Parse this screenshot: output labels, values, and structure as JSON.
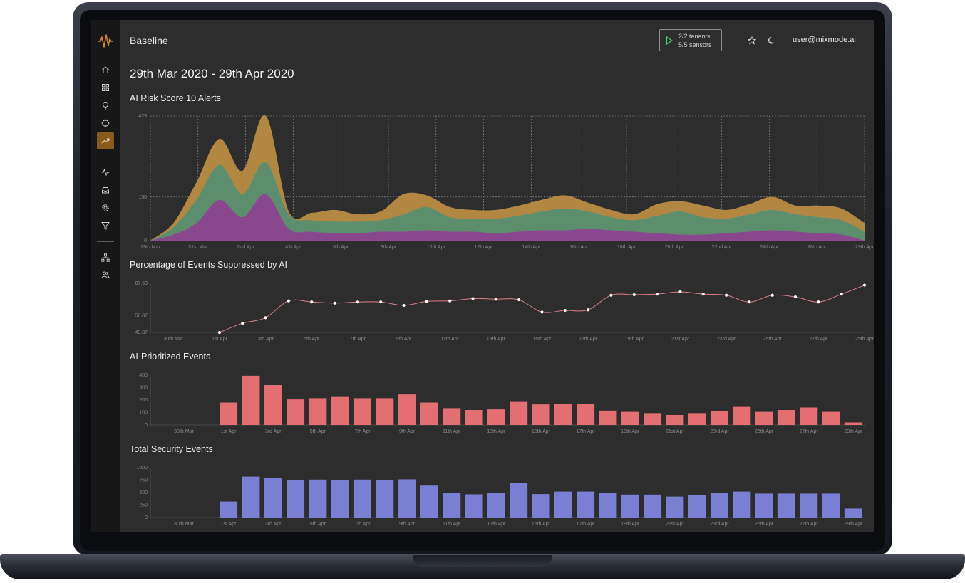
{
  "app": {
    "page_title": "Baseline",
    "date_range": "29th Mar 2020 - 29th Apr 2020",
    "tenants": "2/2 tenants",
    "sensors": "5/5 sensors",
    "user": "user@mixmode.ai",
    "accent": "#8a5a1c"
  },
  "sidebar": {
    "items": [
      {
        "icon": "home-icon"
      },
      {
        "icon": "grid-icon"
      },
      {
        "icon": "bulb-icon"
      },
      {
        "icon": "crosshair-icon"
      },
      {
        "icon": "trend-icon",
        "active": true
      },
      {
        "icon": "pulse-icon"
      },
      {
        "icon": "inbox-icon"
      },
      {
        "icon": "gear-icon"
      },
      {
        "icon": "filter-icon"
      },
      {
        "icon": "network-icon"
      },
      {
        "icon": "users-icon"
      }
    ]
  },
  "chart_data": [
    {
      "type": "area",
      "title": "AI Risk Score 10 Alerts",
      "ylim": [
        0,
        429
      ],
      "y_ticks": [
        0,
        150,
        429
      ],
      "x_ticks": [
        "29th Mar",
        "31st Mar",
        "2nd Apr",
        "4th Apr",
        "6th Apr",
        "8th Apr",
        "10th Apr",
        "12th Apr",
        "14th Apr",
        "16th Apr",
        "18th Apr",
        "20th Apr",
        "22nd Apr",
        "24th Apr",
        "26th Apr",
        "29th Apr"
      ],
      "grid": true,
      "stacked": true,
      "series": [
        {
          "color": "#8e4a93",
          "values": [
            0,
            20,
            60,
            140,
            80,
            160,
            40,
            30,
            25,
            25,
            30,
            30,
            35,
            30,
            30,
            25,
            30,
            35,
            35,
            40,
            35,
            30,
            25,
            20,
            20,
            25,
            30,
            35,
            30,
            25,
            20,
            0
          ]
        },
        {
          "color": "#5f9371",
          "values": [
            0,
            25,
            80,
            120,
            80,
            110,
            50,
            40,
            40,
            40,
            40,
            60,
            80,
            50,
            45,
            50,
            55,
            65,
            75,
            60,
            45,
            40,
            60,
            80,
            60,
            50,
            60,
            70,
            60,
            55,
            50,
            30
          ]
        },
        {
          "color": "#b88c43",
          "values": [
            0,
            15,
            60,
            90,
            80,
            160,
            10,
            25,
            40,
            25,
            30,
            70,
            40,
            35,
            30,
            30,
            35,
            40,
            45,
            30,
            25,
            20,
            40,
            35,
            40,
            30,
            35,
            45,
            30,
            40,
            40,
            30
          ]
        }
      ]
    },
    {
      "type": "line",
      "title": "Percentage of Events Suppressed by AI",
      "ylim": [
        43.87,
        87.63
      ],
      "y_ticks": [
        "43.87",
        "58.87",
        "87.63"
      ],
      "x_ticks": [
        "30th Mar",
        "1st Apr",
        "3rd Apr",
        "5th Apr",
        "7th Apr",
        "9th Apr",
        "11th Apr",
        "13th Apr",
        "15th Apr",
        "17th Apr",
        "19th Apr",
        "21st Apr",
        "23rd Apr",
        "25th Apr",
        "27th Apr",
        "29th Apr"
      ],
      "color": "#e07f86",
      "values": [
        null,
        null,
        null,
        43.87,
        52,
        57,
        72,
        71,
        70,
        71,
        71,
        68,
        71.5,
        72,
        74,
        73.5,
        73,
        62,
        63.5,
        64,
        77,
        77.5,
        78,
        80,
        78,
        77,
        71,
        77,
        75.5,
        71,
        78,
        86
      ]
    },
    {
      "type": "bar",
      "title": "AI-Prioritized Events",
      "ylim": [
        0,
        400
      ],
      "y_ticks": [
        0,
        100,
        200,
        300,
        400
      ],
      "x_ticks": [
        "30th Mar",
        "1st Apr",
        "3rd Apr",
        "5th Apr",
        "7th Apr",
        "9th Apr",
        "11th Apr",
        "13th Apr",
        "15th Apr",
        "17th Apr",
        "19th Apr",
        "21st Apr",
        "23rd Apr",
        "25th Apr",
        "27th Apr",
        "29th Apr"
      ],
      "color": "#e36f73",
      "values": [
        0,
        0,
        0,
        180,
        395,
        320,
        205,
        215,
        225,
        215,
        215,
        245,
        180,
        135,
        120,
        125,
        185,
        165,
        170,
        170,
        115,
        105,
        95,
        80,
        95,
        110,
        145,
        105,
        120,
        140,
        105,
        20
      ]
    },
    {
      "type": "bar",
      "title": "Total Security Events",
      "ylim": [
        0,
        1000
      ],
      "y_ticks": [
        0,
        250,
        500,
        750,
        1000
      ],
      "x_ticks": [
        "30th Mar",
        "1st Apr",
        "3rd Apr",
        "5th Apr",
        "7th Apr",
        "9th Apr",
        "11th Apr",
        "13th Apr",
        "15th Apr",
        "17th Apr",
        "19th Apr",
        "21st Apr",
        "23rd Apr",
        "25th Apr",
        "27th Apr",
        "29th Apr"
      ],
      "color": "#7b7fd4",
      "values": [
        0,
        0,
        0,
        320,
        820,
        790,
        750,
        760,
        750,
        760,
        750,
        765,
        640,
        490,
        465,
        490,
        690,
        470,
        520,
        520,
        490,
        460,
        460,
        420,
        450,
        500,
        520,
        480,
        480,
        480,
        480,
        180
      ]
    }
  ]
}
